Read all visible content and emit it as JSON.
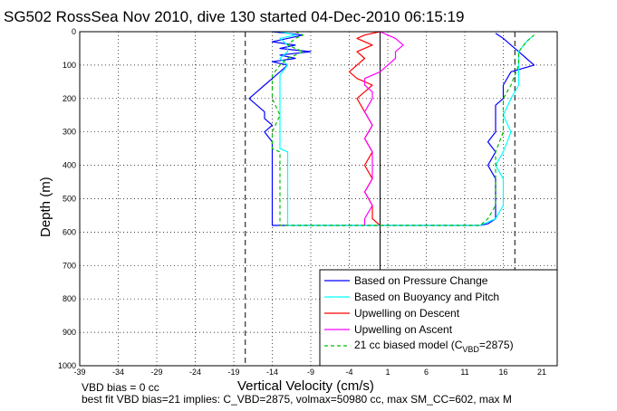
{
  "chart_data": {
    "type": "line",
    "title": "SG502 RossSea Nov 2010, dive 130 started 04-Dec-2010 06:15:19",
    "xlabel": "Vertical Velocity (cm/s)",
    "ylabel": "Depth (m)",
    "xlim": [
      -39,
      23
    ],
    "ylim": [
      1000,
      0
    ],
    "xticks": [
      -39,
      -34,
      -29,
      -24,
      -19,
      -14,
      -9,
      -4,
      1,
      6,
      11,
      16,
      21
    ],
    "yticks": [
      0,
      100,
      200,
      300,
      400,
      500,
      600,
      700,
      800,
      900,
      1000
    ],
    "grid": true,
    "y_reversed": true,
    "legend_position": "bottom-right",
    "vlines": {
      "solid_x": 0,
      "dashed_x": [
        -17.5,
        17.5
      ]
    },
    "series": [
      {
        "name": "Based on Pressure Change",
        "color": "#0000ff",
        "style": "solid",
        "depth": [
          0,
          5,
          10,
          20,
          30,
          40,
          50,
          60,
          70,
          80,
          90,
          100,
          120,
          140,
          160,
          180,
          200,
          220,
          240,
          260,
          280,
          300,
          330,
          360,
          400,
          440,
          480,
          520,
          560,
          575,
          580,
          580,
          575,
          560,
          520,
          480,
          440,
          400,
          360,
          330,
          300,
          260,
          220,
          200,
          160,
          120,
          100,
          80,
          60,
          40,
          20,
          5
        ],
        "x": [
          -14,
          -12,
          -10,
          -12,
          -14,
          -11,
          -13,
          -9,
          -13,
          -11,
          -14,
          -12,
          -13,
          -14,
          -15,
          -16,
          -17,
          -16,
          -15,
          -15,
          -14,
          -15,
          -14,
          -14,
          -14,
          -14,
          -14,
          -14,
          -14,
          -14,
          -14,
          13,
          14,
          15,
          15,
          15,
          15,
          14,
          15,
          14,
          15,
          15,
          15,
          16,
          16,
          17,
          20,
          19,
          18,
          17,
          16,
          15
        ]
      },
      {
        "name": "Based on Buoyancy and Pitch",
        "color": "#00ffff",
        "style": "solid",
        "depth": [
          0,
          10,
          20,
          40,
          60,
          80,
          100,
          130,
          160,
          200,
          250,
          300,
          350,
          360,
          400,
          440,
          480,
          520,
          560,
          580,
          580,
          560,
          520,
          480,
          440,
          400,
          360,
          300,
          250,
          200,
          160,
          100,
          60,
          30,
          10
        ],
        "x": [
          -13,
          -11,
          -13,
          -12,
          -12,
          -13,
          -12,
          -13,
          -13,
          -13,
          -13,
          -13,
          -13,
          -12,
          -12,
          -12,
          -12,
          -12,
          -12,
          -12,
          13,
          15,
          16,
          16,
          16,
          15,
          16,
          17,
          16,
          17,
          18,
          18,
          18,
          19,
          20
        ]
      },
      {
        "name": "Upwelling on Descent",
        "color": "#ff0000",
        "style": "solid",
        "depth": [
          0,
          10,
          20,
          40,
          60,
          80,
          100,
          120,
          140,
          160,
          180,
          200,
          240,
          280,
          320,
          360,
          400,
          440,
          480,
          520,
          560,
          580
        ],
        "x": [
          0,
          -2,
          -3,
          -1,
          -3,
          -2,
          -3,
          -4,
          -3,
          -1,
          -2,
          -3,
          -2,
          -1,
          -2,
          -1,
          -2,
          -1,
          -2,
          -1,
          -1,
          0
        ]
      },
      {
        "name": "Upwelling on Ascent",
        "color": "#ff00ff",
        "style": "solid",
        "depth": [
          580,
          560,
          520,
          480,
          440,
          400,
          360,
          320,
          280,
          240,
          200,
          180,
          160,
          140,
          120,
          100,
          80,
          60,
          40,
          20,
          10,
          0
        ],
        "x": [
          -2,
          -2,
          -1,
          -2,
          -1,
          -1,
          -1,
          -2,
          -1,
          -2,
          -1,
          -1,
          -2,
          -2,
          0,
          1,
          2,
          2,
          3,
          2,
          1,
          0
        ]
      },
      {
        "name": "21 cc biased model (C_VBD=2875)",
        "color": "#00c000",
        "style": "dashed",
        "depth": [
          0,
          10,
          20,
          40,
          60,
          80,
          100,
          130,
          160,
          200,
          250,
          300,
          350,
          360,
          400,
          440,
          480,
          520,
          560,
          580,
          580,
          560,
          520,
          480,
          440,
          400,
          360,
          300,
          250,
          200,
          160,
          100,
          60,
          30,
          10
        ],
        "x": [
          -11,
          -10,
          -11,
          -12,
          -10,
          -12,
          -13,
          -14,
          -14,
          -14,
          -13,
          -14,
          -14,
          -13,
          -13,
          -13,
          -13,
          -13,
          -13,
          -13,
          13,
          14,
          15,
          15,
          15,
          15,
          15,
          16,
          16,
          16,
          17,
          18,
          18,
          19,
          20
        ]
      }
    ],
    "legend_entries": [
      "Based on Pressure Change",
      "Based on Buoyancy and Pitch",
      "Upwelling on Descent",
      "Upwelling on Ascent",
      "21 cc biased model (C",
      "VBD",
      "=2875)"
    ]
  },
  "footer": {
    "line1": "VBD bias = 0 cc",
    "line2": "best fit VBD bias=21 implies: C_VBD=2875, volmax=50980 cc, max SM_CC=602, max M"
  }
}
